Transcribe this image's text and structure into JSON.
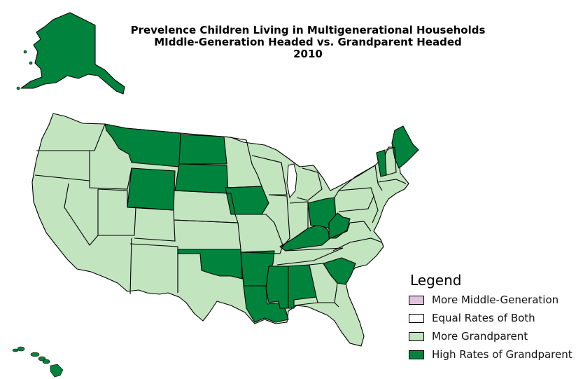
{
  "title": {
    "line1": "Prevelence Children Living in Multigenerational Households",
    "line2": "MIddle-Generation Headed vs. Grandparent Headed",
    "line3": "2010"
  },
  "legend": {
    "title": "Legend",
    "items": [
      {
        "label": "More Middle-Generation",
        "color": "#dfc2de"
      },
      {
        "label": "Equal Rates of Both",
        "color": "#ffffff"
      },
      {
        "label": "More Grandparent",
        "color": "#c2e5c0"
      },
      {
        "label": "High Rates of Grandparent",
        "color": "#00843d"
      }
    ]
  },
  "colors": {
    "light": "#c2e5c0",
    "dark": "#00843d",
    "lake": "#ffffff"
  },
  "high_rate_states": [
    "Alaska",
    "Montana",
    "North Dakota",
    "South Dakota",
    "Wyoming",
    "Iowa",
    "Oklahoma",
    "Arkansas",
    "Louisiana",
    "Mississippi",
    "Alabama",
    "Kentucky",
    "Ohio",
    "West Virginia",
    "South Carolina",
    "Vermont",
    "Maine",
    "Hawaii"
  ]
}
